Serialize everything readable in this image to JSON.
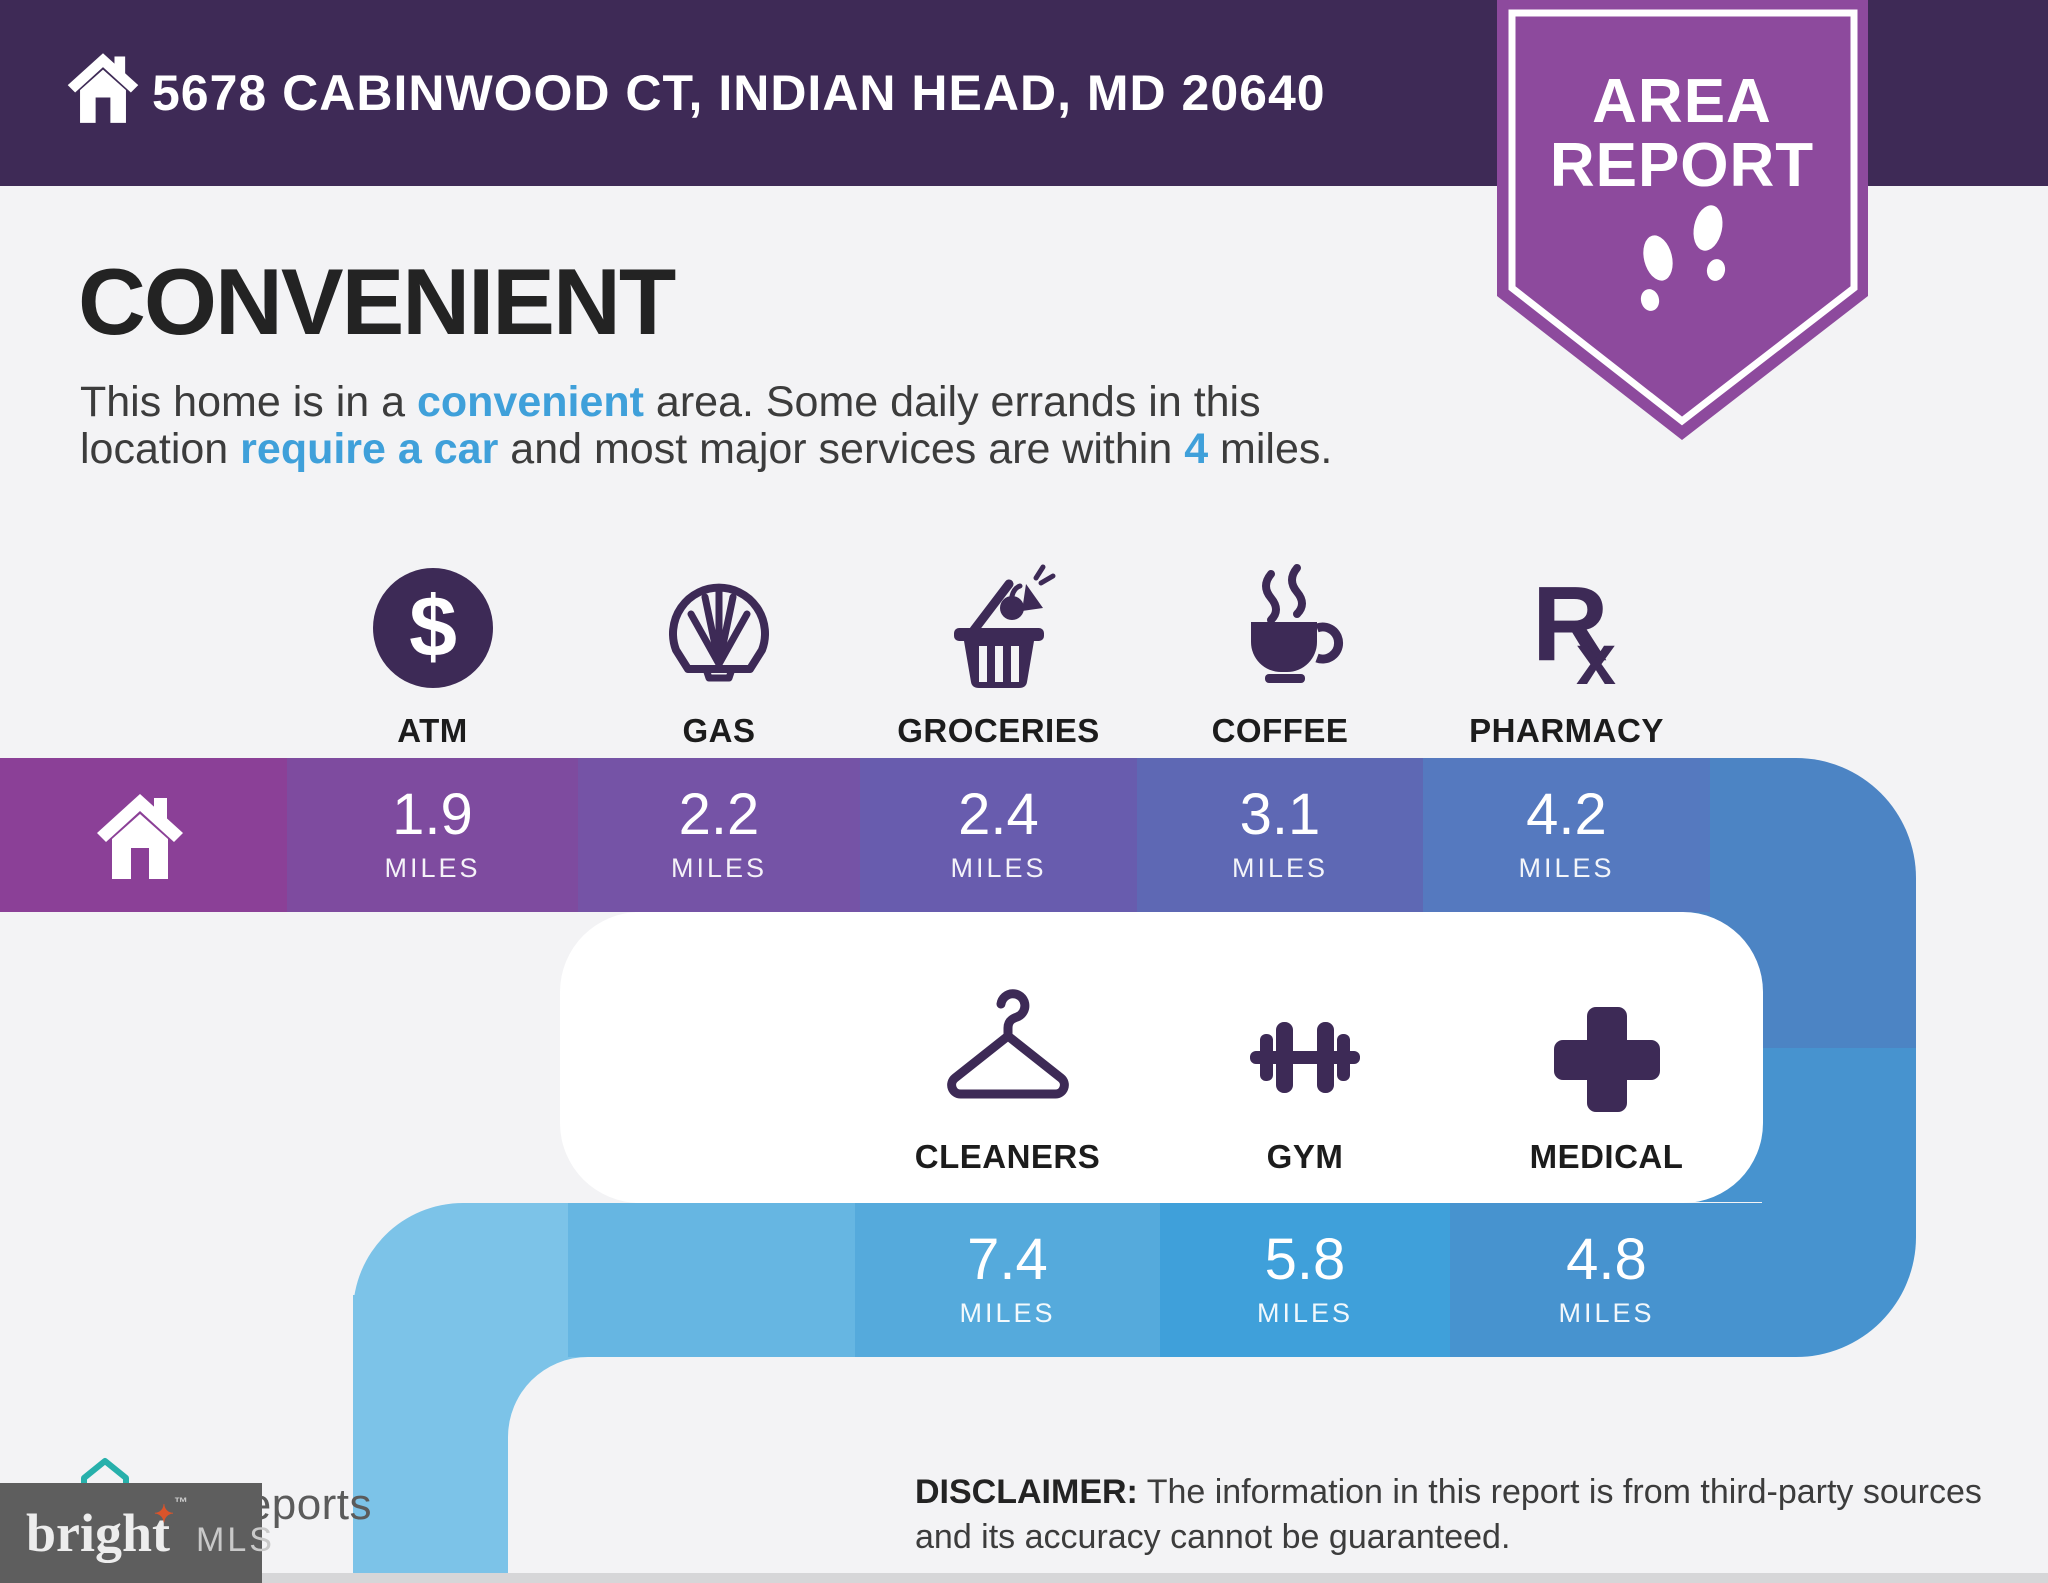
{
  "colors": {
    "page_bg": "#f3f3f5",
    "header_bg": "#3e2a56",
    "badge_purple": "#8d4a9d",
    "icon_purple": "#3d2a56",
    "accent_blue": "#3fa0da",
    "row1_home_segment": "#8b4097",
    "row1_corner": "#4c84c4",
    "row2_corner_light": "#7cc3e8",
    "row2_empty": "#66b6e2",
    "row2_right_strip": "#4793cf"
  },
  "header": {
    "address": "5678 CABINWOOD CT, INDIAN HEAD, MD 20640"
  },
  "badge": {
    "line1": "AREA",
    "line2": "REPORT"
  },
  "intro": {
    "title": "CONVENIENT",
    "line1": [
      {
        "text": "This home is in a "
      },
      {
        "text": "convenient",
        "accent": true
      },
      {
        "text": " area. Some daily errands in this"
      }
    ],
    "line2": [
      {
        "text": "location "
      },
      {
        "text": "require a car",
        "accent": true
      },
      {
        "text": " and most major services are within "
      },
      {
        "text": "4",
        "accent": true
      },
      {
        "text": " miles."
      }
    ]
  },
  "miles_unit": "MILES",
  "row1": {
    "items": [
      {
        "label": "ATM",
        "icon": "atm-icon",
        "miles": "1.9",
        "color": "#7e4b9f"
      },
      {
        "label": "GAS",
        "icon": "gas-shell-icon",
        "miles": "2.2",
        "color": "#7553a6"
      },
      {
        "label": "GROCERIES",
        "icon": "groceries-basket-icon",
        "miles": "2.4",
        "color": "#685cae"
      },
      {
        "label": "COFFEE",
        "icon": "coffee-cup-icon",
        "miles": "3.1",
        "color": "#5e68b4"
      },
      {
        "label": "PHARMACY",
        "icon": "pharmacy-rx-icon",
        "miles": "4.2",
        "color": "#5579bf"
      }
    ]
  },
  "row2": {
    "items": [
      {
        "label": "CLEANERS",
        "icon": "cleaners-hanger-icon",
        "miles": "7.4",
        "color": "#55aadc"
      },
      {
        "label": "GYM",
        "icon": "gym-dumbbell-icon",
        "miles": "5.8",
        "color": "#3fa0da"
      },
      {
        "label": "MEDICAL",
        "icon": "medical-cross-icon",
        "miles": "4.8",
        "color": "#4793cf"
      }
    ]
  },
  "footer": {
    "listreports": "ListReports",
    "disclaimer_label": "DISCLAIMER:",
    "disclaimer_text": " The information in this report is from third-party sources and its accuracy cannot be guaranteed.",
    "bright": "bright",
    "mls": "MLS",
    "tm": "™"
  }
}
